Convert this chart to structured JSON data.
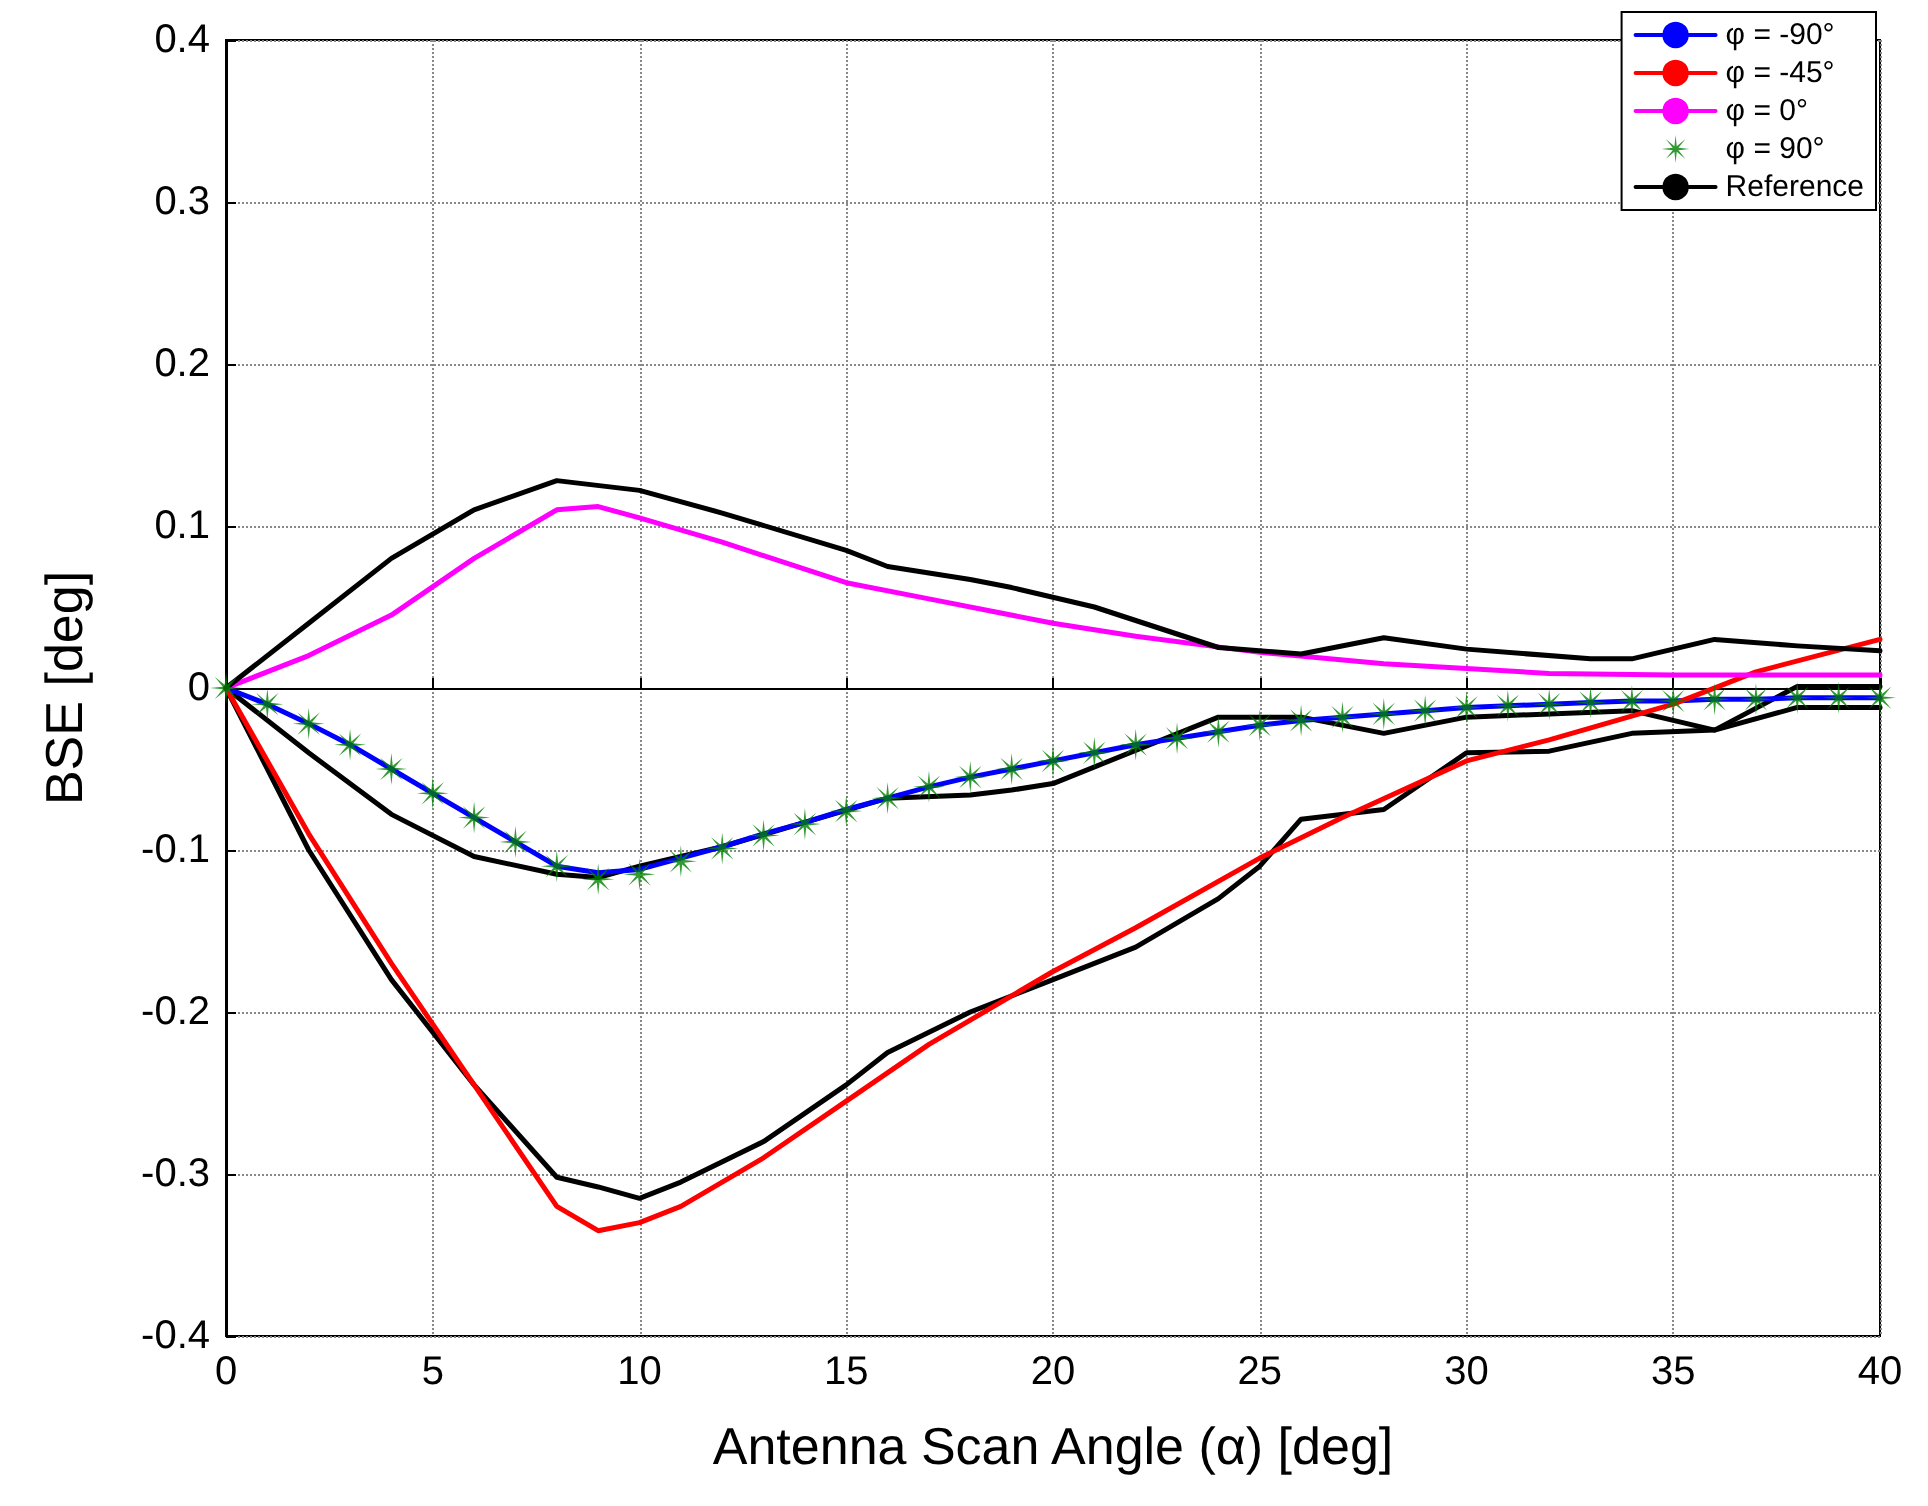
{
  "chart_data": {
    "type": "line",
    "xlabel": "Antenna Scan Angle (α) [deg]",
    "ylabel": "BSE [deg]",
    "xlim": [
      0,
      40
    ],
    "xticks": [
      0,
      5,
      10,
      15,
      20,
      25,
      30,
      35,
      40
    ],
    "ylim": [
      -0.4,
      0.4
    ],
    "yticks": [
      -0.4,
      -0.3,
      -0.2,
      -0.1,
      0,
      0.1,
      0.2,
      0.3,
      0.4
    ],
    "grid": true,
    "legend": "top right",
    "line_style": "solid",
    "marker": "none",
    "series": [
      {
        "name": "φ = -90°",
        "color": "#0000ff",
        "x": [
          0,
          1,
          2,
          3,
          4,
          5,
          6,
          7,
          8,
          9,
          10,
          11,
          12,
          13,
          14,
          15,
          16,
          17,
          18,
          19,
          20,
          21,
          22,
          23,
          24,
          25,
          26,
          27,
          28,
          29,
          30,
          31,
          32,
          33,
          34,
          35,
          36,
          37,
          38,
          39,
          40
        ],
        "values": [
          0,
          -0.01,
          -0.022,
          -0.035,
          -0.05,
          -0.065,
          -0.08,
          -0.095,
          -0.11,
          -0.114,
          -0.112,
          -0.105,
          -0.098,
          -0.09,
          -0.083,
          -0.075,
          -0.068,
          -0.061,
          -0.055,
          -0.05,
          -0.045,
          -0.04,
          -0.035,
          -0.031,
          -0.027,
          -0.023,
          -0.02,
          -0.018,
          -0.016,
          -0.014,
          -0.012,
          -0.011,
          -0.01,
          -0.009,
          -0.008,
          -0.008,
          -0.007,
          -0.007,
          -0.006,
          -0.006,
          -0.006
        ]
      },
      {
        "name": "φ = -45°",
        "color": "#ff0000",
        "x": [
          0,
          2,
          4,
          6,
          8,
          9,
          10,
          11,
          13,
          15,
          17,
          20,
          22,
          25,
          27,
          30,
          32,
          35,
          37,
          40
        ],
        "values": [
          0,
          -0.09,
          -0.17,
          -0.245,
          -0.32,
          -0.335,
          -0.33,
          -0.32,
          -0.29,
          -0.255,
          -0.22,
          -0.175,
          -0.148,
          -0.105,
          -0.08,
          -0.045,
          -0.032,
          -0.01,
          0.01,
          0.03
        ]
      },
      {
        "name": "φ = 0°",
        "color": "#ff00ff",
        "x": [
          0,
          2,
          4,
          6,
          8,
          9,
          10,
          12,
          15,
          17,
          20,
          22,
          25,
          28,
          30,
          32,
          35,
          40
        ],
        "values": [
          0,
          0.02,
          0.045,
          0.08,
          0.11,
          0.112,
          0.105,
          0.09,
          0.065,
          0.055,
          0.04,
          0.032,
          0.022,
          0.015,
          0.012,
          0.009,
          0.008,
          0.008
        ]
      },
      {
        "name": "φ = 90°",
        "type": "scatter",
        "color": "#008000",
        "marker": "star",
        "x": [
          0,
          1,
          2,
          3,
          4,
          5,
          6,
          7,
          8,
          9,
          10,
          11,
          12,
          13,
          14,
          15,
          16,
          17,
          18,
          19,
          20,
          21,
          22,
          23,
          24,
          25,
          26,
          27,
          28,
          29,
          30,
          31,
          32,
          33,
          34,
          35,
          36,
          37,
          38,
          39,
          40
        ],
        "values": [
          0,
          -0.01,
          -0.022,
          -0.035,
          -0.05,
          -0.065,
          -0.08,
          -0.095,
          -0.11,
          -0.118,
          -0.115,
          -0.107,
          -0.099,
          -0.091,
          -0.084,
          -0.076,
          -0.068,
          -0.061,
          -0.055,
          -0.05,
          -0.045,
          -0.04,
          -0.035,
          -0.031,
          -0.027,
          -0.023,
          -0.02,
          -0.018,
          -0.016,
          -0.014,
          -0.012,
          -0.011,
          -0.01,
          -0.009,
          -0.008,
          -0.008,
          -0.007,
          -0.007,
          -0.006,
          -0.006,
          -0.006
        ]
      },
      {
        "name": "Reference",
        "color": "#000000",
        "x": [
          0,
          2,
          4,
          6,
          8,
          10,
          12,
          15,
          16,
          18,
          19,
          21,
          24,
          26,
          28,
          30,
          33,
          34,
          36,
          38,
          40
        ],
        "values": [
          0,
          0.04,
          0.08,
          0.11,
          0.128,
          0.122,
          0.108,
          0.085,
          0.075,
          0.067,
          0.062,
          0.05,
          0.025,
          0.021,
          0.031,
          0.024,
          0.018,
          0.018,
          0.03,
          0.026,
          0.023
        ]
      },
      {
        "color": "#000000",
        "x": [
          0,
          2,
          4,
          6,
          8,
          9,
          10,
          12,
          14,
          16,
          18,
          19,
          20,
          24,
          26,
          28,
          30,
          34,
          36,
          38,
          40
        ],
        "values": [
          0,
          -0.04,
          -0.078,
          -0.104,
          -0.115,
          -0.117,
          -0.11,
          -0.098,
          -0.083,
          -0.068,
          -0.066,
          -0.063,
          -0.059,
          -0.018,
          -0.018,
          -0.028,
          -0.018,
          -0.014,
          -0.026,
          0.001,
          0.001
        ]
      },
      {
        "color": "#000000",
        "x": [
          0,
          2,
          4,
          6,
          8,
          9,
          10,
          11,
          13,
          15,
          16,
          18,
          20,
          22,
          24,
          25,
          26,
          28,
          30,
          32,
          34,
          36,
          38,
          40
        ],
        "values": [
          0,
          -0.1,
          -0.18,
          -0.245,
          -0.302,
          -0.308,
          -0.315,
          -0.305,
          -0.28,
          -0.245,
          -0.225,
          -0.2,
          -0.18,
          -0.16,
          -0.13,
          -0.11,
          -0.081,
          -0.075,
          -0.04,
          -0.039,
          -0.028,
          -0.026,
          -0.012,
          -0.012
        ]
      }
    ]
  }
}
